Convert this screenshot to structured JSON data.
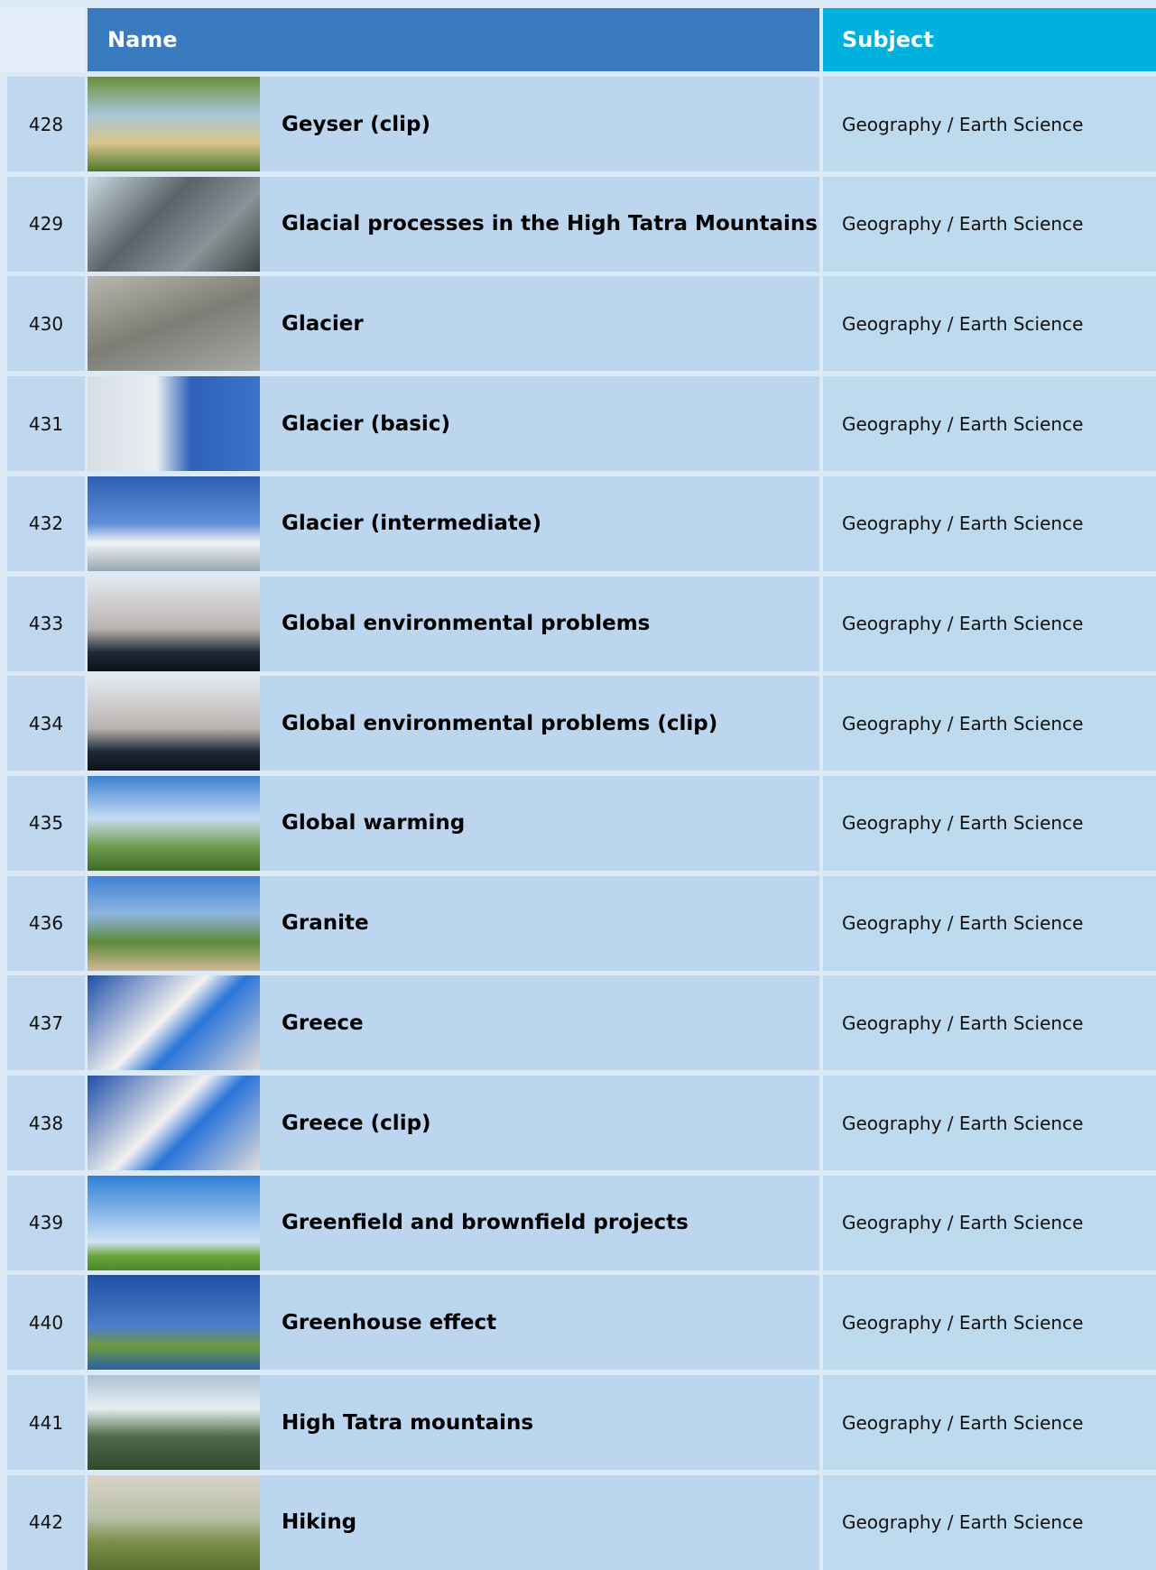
{
  "header": {
    "columns": [
      "Name",
      "Subject"
    ]
  },
  "table": {
    "rows": [
      {
        "number": 428,
        "name": "Geyser (clip)",
        "subject": "Geography / Earth Science"
      },
      {
        "number": 429,
        "name": "Glacial processes in the High Tatra Mountains",
        "subject": "Geography / Earth Science"
      },
      {
        "number": 430,
        "name": "Glacier",
        "subject": "Geography / Earth Science"
      },
      {
        "number": 431,
        "name": "Glacier (basic)",
        "subject": "Geography / Earth Science"
      },
      {
        "number": 432,
        "name": "Glacier (intermediate)",
        "subject": "Geography / Earth Science"
      },
      {
        "number": 433,
        "name": "Global environmental problems",
        "subject": "Geography / Earth Science"
      },
      {
        "number": 434,
        "name": "Global environmental problems (clip)",
        "subject": "Geography / Earth Science"
      },
      {
        "number": 435,
        "name": "Global warming",
        "subject": "Geography / Earth Science"
      },
      {
        "number": 436,
        "name": "Granite",
        "subject": "Geography / Earth Science"
      },
      {
        "number": 437,
        "name": "Greece",
        "subject": "Geography / Earth Science"
      },
      {
        "number": 438,
        "name": "Greece (clip)",
        "subject": "Geography / Earth Science"
      },
      {
        "number": 439,
        "name": "Greenfield and brownfield projects",
        "subject": "Geography / Earth Science"
      },
      {
        "number": 440,
        "name": "Greenhouse effect",
        "subject": "Geography / Earth Science"
      },
      {
        "number": 441,
        "name": "High Tatra mountains",
        "subject": "Geography / Earth Science"
      },
      {
        "number": 442,
        "name": "Hiking",
        "subject": "Geography / Earth Science"
      }
    ]
  }
}
